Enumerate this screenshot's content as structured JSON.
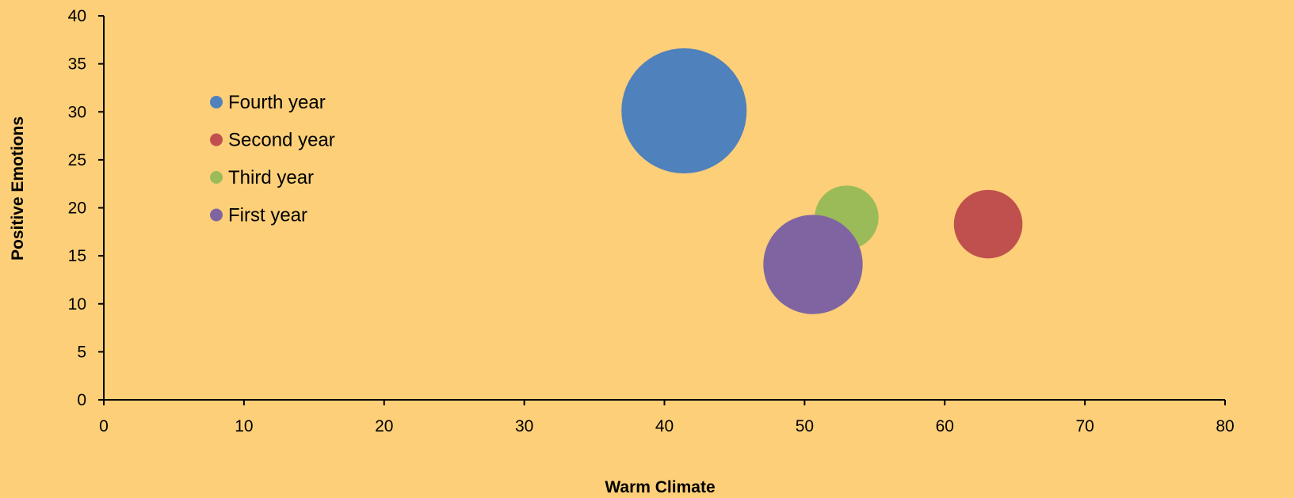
{
  "chart_data": {
    "type": "bubble",
    "xlabel": "Warm Climate",
    "ylabel": "Positive Emotions",
    "xlim": [
      0,
      80
    ],
    "ylim": [
      0,
      40
    ],
    "xticks": [
      0,
      10,
      20,
      30,
      40,
      50,
      60,
      70,
      80
    ],
    "yticks": [
      0,
      5,
      10,
      15,
      20,
      25,
      30,
      35,
      40
    ],
    "grid": false,
    "legend_position": "upper-left",
    "background_color": "#FCCF78",
    "series": [
      {
        "name": "Fourth year",
        "x": 41.4,
        "y": 30.1,
        "size": 1.0,
        "color": "#4F81BD"
      },
      {
        "name": "Second year",
        "x": 63.1,
        "y": 18.3,
        "size": 0.3,
        "color": "#C0504D"
      },
      {
        "name": "Third year",
        "x": 53.0,
        "y": 19.0,
        "size": 0.26,
        "color": "#9BBB59"
      },
      {
        "name": "First year",
        "x": 50.6,
        "y": 14.1,
        "size": 0.63,
        "color": "#8064A2"
      }
    ]
  }
}
